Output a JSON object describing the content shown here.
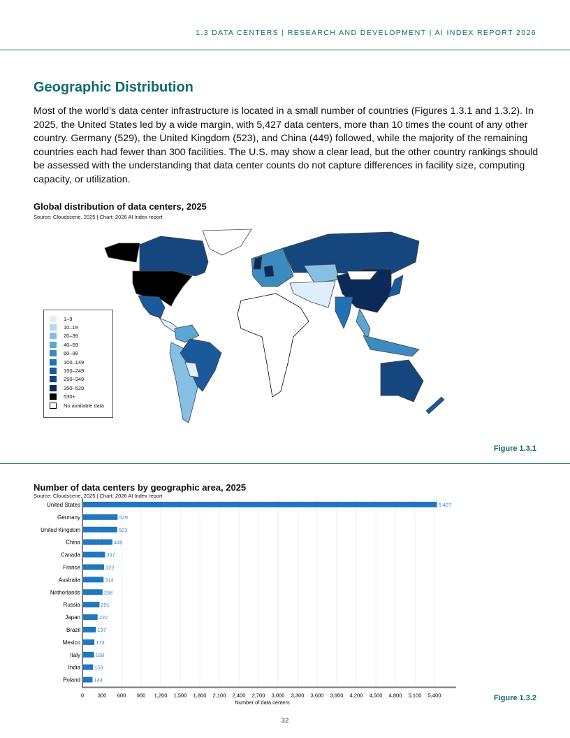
{
  "header": "1.3 DATA CENTERS  |  RESEARCH AND DEVELOPMENT  |  AI INDEX REPORT 2026",
  "section_title": "Geographic Distribution",
  "body_text": "Most of the world’s data center infrastructure is located in a small number of countries (Figures 1.3.1 and 1.3.2). In 2025, the United States led by a wide margin, with 5,427 data centers, more than 10 times the count of any other country. Germany (529), the United Kingdom (523), and China (449) followed, while the majority of the remaining countries each had fewer than 300 facilities. The U.S. may show a clear lead, but the other country rankings should be assessed with the understanding that data center counts do not capture differences in facility size, computing capacity, or utilization.",
  "map": {
    "title": "Global distribution of data centers, 2025",
    "source": "Source: Cloudscene, 2025 | Chart: 2026 AI Index report",
    "figure": "Figure 1.3.1",
    "legend": [
      {
        "label": "1–9",
        "color": "#deeefc"
      },
      {
        "label": "10–19",
        "color": "#b5d7ef"
      },
      {
        "label": "20–39",
        "color": "#86bfe2"
      },
      {
        "label": "40–59",
        "color": "#5ba6d3"
      },
      {
        "label": "60–99",
        "color": "#3c8bc0"
      },
      {
        "label": "100–149",
        "color": "#2171b5"
      },
      {
        "label": "150–249",
        "color": "#1a5a9a"
      },
      {
        "label": "250–349",
        "color": "#16467e"
      },
      {
        "label": "350–529",
        "color": "#0b2a5a"
      },
      {
        "label": "530+",
        "color": "#000000"
      },
      {
        "label": "No available data",
        "color": "#ffffff"
      }
    ]
  },
  "chart_data": {
    "type": "bar",
    "title": "Number of data centers by geographic area, 2025",
    "source": "Source: Cloudscene, 2025 | Chart: 2026 AI Index report",
    "xlabel": "Number of data centers",
    "figure": "Figure 1.3.2",
    "categories": [
      "United States",
      "Germany",
      "United Kingdom",
      "China",
      "Canada",
      "France",
      "Australia",
      "Netherlands",
      "Russia",
      "Japan",
      "Brazil",
      "Mexico",
      "Italy",
      "India",
      "Poland"
    ],
    "values": [
      5427,
      529,
      523,
      449,
      337,
      322,
      314,
      298,
      251,
      222,
      197,
      173,
      168,
      153,
      144
    ],
    "labels": [
      "5,427",
      "529",
      "523",
      "449",
      "337",
      "322",
      "314",
      "298",
      "251",
      "222",
      "197",
      "173",
      "168",
      "153",
      "144"
    ],
    "xlim": [
      0,
      5700
    ],
    "xticks": [
      "0",
      "300",
      "600",
      "900",
      "1,200",
      "1,500",
      "1,800",
      "2,100",
      "2,400",
      "2,700",
      "3,000",
      "3,300",
      "3,600",
      "3,900",
      "4,200",
      "4,500",
      "4,800",
      "5,100",
      "5,400"
    ],
    "bar_color": "#1f77c0",
    "grid": true
  },
  "page_number": "32"
}
